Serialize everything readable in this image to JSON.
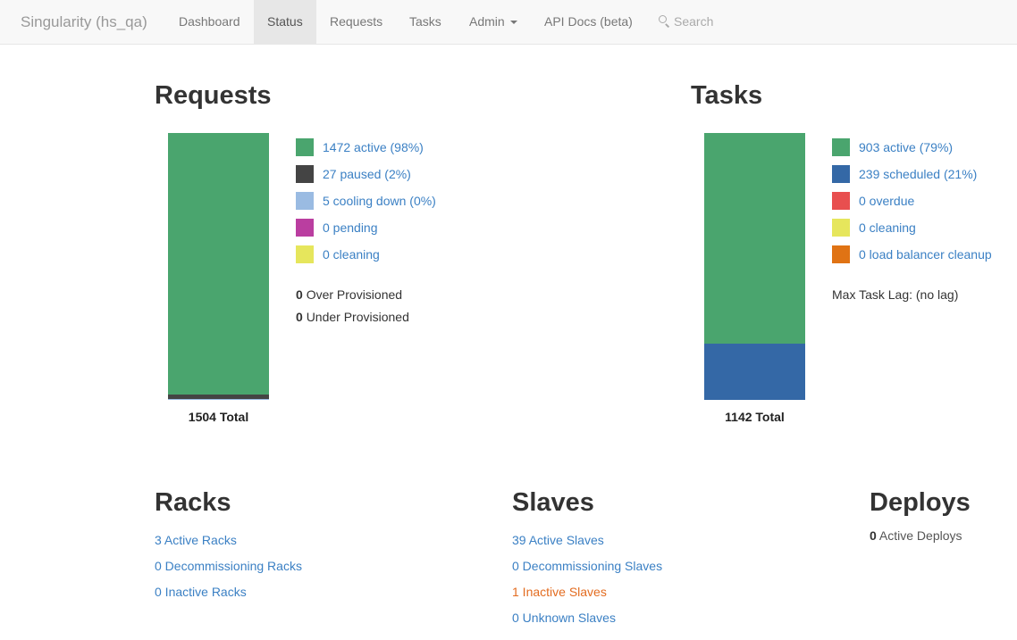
{
  "nav": {
    "brand": "Singularity (hs_qa)",
    "items": [
      {
        "label": "Dashboard"
      },
      {
        "label": "Status"
      },
      {
        "label": "Requests"
      },
      {
        "label": "Tasks"
      },
      {
        "label": "Admin"
      },
      {
        "label": "API Docs (beta)"
      }
    ],
    "active": "Status",
    "search_label": "Search",
    "search_icon": "search-icon"
  },
  "requests": {
    "title": "Requests",
    "legend": [
      {
        "label": "1472 active (98%)",
        "color": "#4aa56e",
        "value": 1472
      },
      {
        "label": "27 paused (2%)",
        "color": "#444444",
        "value": 27
      },
      {
        "label": "5 cooling down (0%)",
        "color": "#9abbe2",
        "value": 5
      },
      {
        "label": "0 pending",
        "color": "#ba3ea0",
        "value": 0
      },
      {
        "label": "0 cleaning",
        "color": "#e6e65c",
        "value": 0
      }
    ],
    "over_provisioned_count": "0",
    "over_provisioned_label": "Over Provisioned",
    "under_provisioned_count": "0",
    "under_provisioned_label": "Under Provisioned",
    "total": "1504 Total",
    "total_value": 1504
  },
  "tasks": {
    "title": "Tasks",
    "legend": [
      {
        "label": "903 active (79%)",
        "color": "#4aa56e",
        "value": 903
      },
      {
        "label": "239 scheduled (21%)",
        "color": "#3468a6",
        "value": 239
      },
      {
        "label": "0 overdue",
        "color": "#e84f4f",
        "value": 0
      },
      {
        "label": "0 cleaning",
        "color": "#e6e65c",
        "value": 0
      },
      {
        "label": "0 load balancer cleanup",
        "color": "#e07314",
        "value": 0
      }
    ],
    "max_lag": "Max Task Lag: (no lag)",
    "total": "1142 Total",
    "total_value": 1142
  },
  "racks": {
    "title": "Racks",
    "links": [
      "3 Active Racks",
      "0 Decommissioning Racks",
      "0 Inactive Racks"
    ]
  },
  "slaves": {
    "title": "Slaves",
    "links": [
      "39 Active Slaves",
      "0 Decommissioning Slaves",
      "1 Inactive Slaves",
      "0 Unknown Slaves"
    ]
  },
  "deploys": {
    "title": "Deploys",
    "active_count": "0",
    "active_label": "Active Deploys"
  }
}
